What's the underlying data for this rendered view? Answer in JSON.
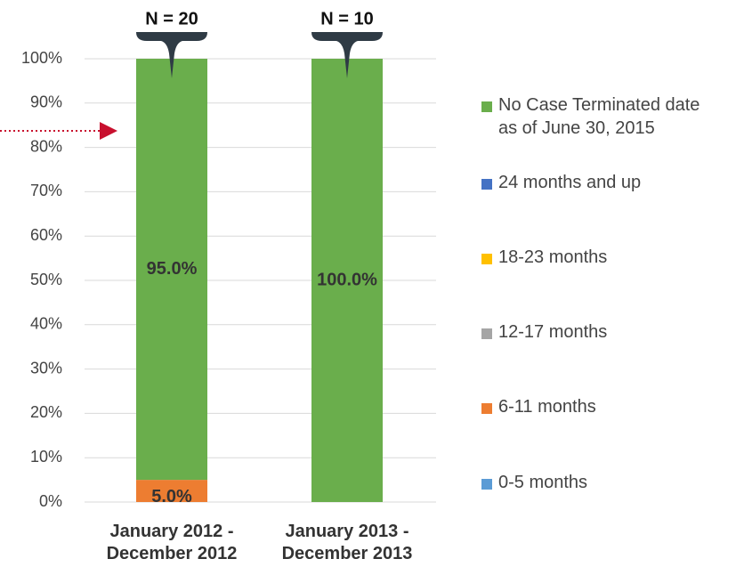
{
  "chart_data": {
    "type": "stacked_bar",
    "categories": [
      "January 2012 - December 2012",
      "January 2013 - December 2013"
    ],
    "annotations": [
      "N = 20",
      "N = 10"
    ],
    "series": [
      {
        "name": "0-5 months",
        "color": "#5b9bd5",
        "values": [
          0,
          0
        ],
        "value_labels": [
          null,
          null
        ]
      },
      {
        "name": "6-11 months",
        "color": "#ed7d31",
        "values": [
          5,
          0
        ],
        "value_labels": [
          "5.0%",
          null
        ]
      },
      {
        "name": "12-17 months",
        "color": "#a5a5a5",
        "values": [
          0,
          0
        ],
        "value_labels": [
          null,
          null
        ]
      },
      {
        "name": "18-23 months",
        "color": "#ffc000",
        "values": [
          0,
          0
        ],
        "value_labels": [
          null,
          null
        ]
      },
      {
        "name": "24 months and up",
        "color": "#4472c4",
        "values": [
          0,
          0
        ],
        "value_labels": [
          null,
          null
        ]
      },
      {
        "name": "No Case Terminated date as of June 30, 2015",
        "color": "#6aae4c",
        "values": [
          95,
          100
        ],
        "value_labels": [
          "95.0%",
          "100.0%"
        ]
      }
    ],
    "ylim": [
      0,
      100
    ],
    "yticks": [
      {
        "value": 0,
        "label": "0%"
      },
      {
        "value": 10,
        "label": "10%"
      },
      {
        "value": 20,
        "label": "20%"
      },
      {
        "value": 30,
        "label": "30%"
      },
      {
        "value": 40,
        "label": "40%"
      },
      {
        "value": 50,
        "label": "50%"
      },
      {
        "value": 60,
        "label": "60%"
      },
      {
        "value": 70,
        "label": "70%"
      },
      {
        "value": 80,
        "label": "80%"
      },
      {
        "value": 90,
        "label": "90%"
      },
      {
        "value": 100,
        "label": "100%"
      }
    ],
    "grid": true,
    "legend": "right"
  }
}
